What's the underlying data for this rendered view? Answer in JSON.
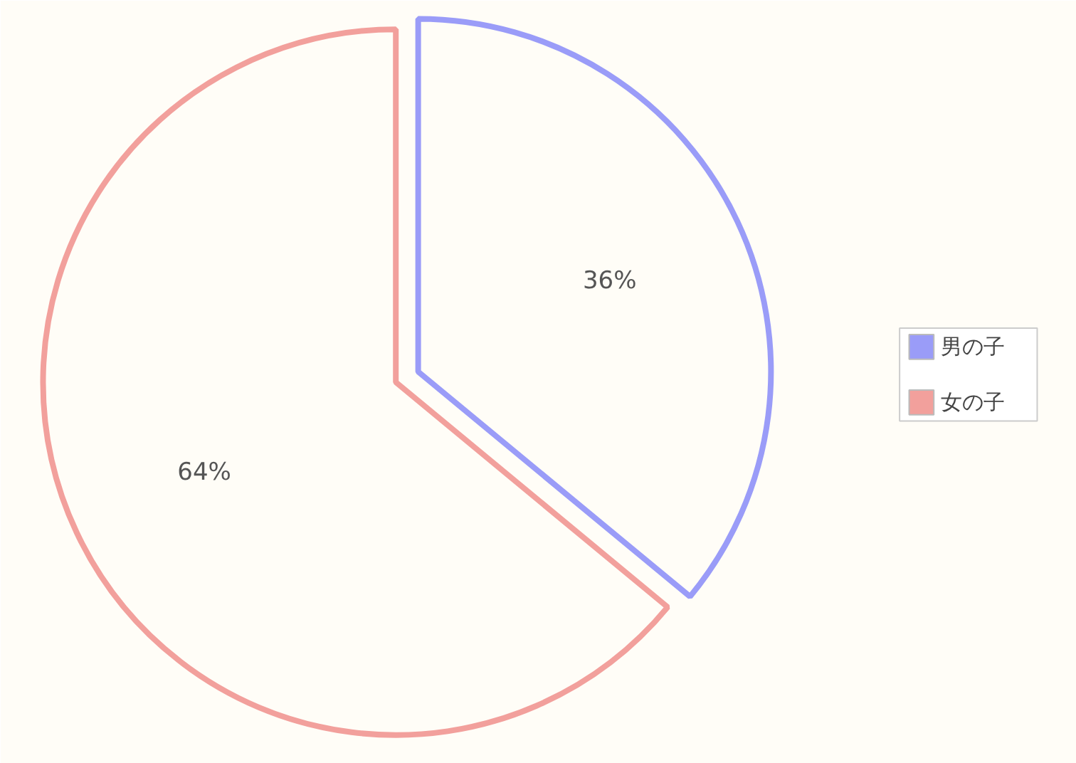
{
  "chart_data": {
    "type": "pie",
    "categories": [
      "男の子",
      "女の子"
    ],
    "values": [
      36,
      64
    ],
    "colors": [
      "#9a9cf8",
      "#f2a09c"
    ],
    "value_labels": [
      "36%",
      "64%"
    ],
    "legend": "right"
  }
}
